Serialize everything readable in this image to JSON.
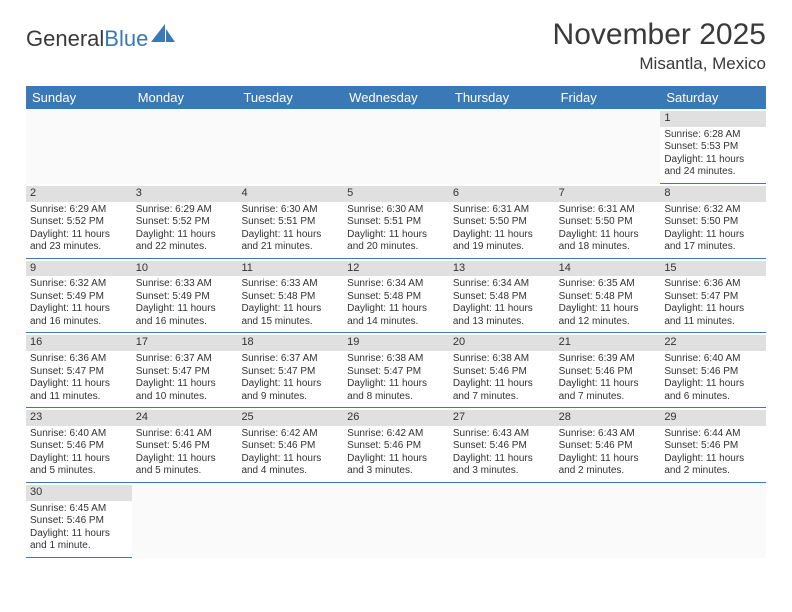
{
  "logo": {
    "part1": "General",
    "part2": "Blue"
  },
  "title": "November 2025",
  "location": "Misantla, Mexico",
  "weekdays": [
    "Sunday",
    "Monday",
    "Tuesday",
    "Wednesday",
    "Thursday",
    "Friday",
    "Saturday"
  ],
  "colors": {
    "header_bar": "#3a78b6",
    "daynum_band": "#e0e0e0",
    "cell_border": "#3a78b6",
    "text": "#333333",
    "logo_blue": "#3a78b6"
  },
  "firstDayOffset": 6,
  "days": [
    {
      "n": 1,
      "sunrise": "6:28 AM",
      "sunset": "5:53 PM",
      "daylight": "11 hours and 24 minutes."
    },
    {
      "n": 2,
      "sunrise": "6:29 AM",
      "sunset": "5:52 PM",
      "daylight": "11 hours and 23 minutes."
    },
    {
      "n": 3,
      "sunrise": "6:29 AM",
      "sunset": "5:52 PM",
      "daylight": "11 hours and 22 minutes."
    },
    {
      "n": 4,
      "sunrise": "6:30 AM",
      "sunset": "5:51 PM",
      "daylight": "11 hours and 21 minutes."
    },
    {
      "n": 5,
      "sunrise": "6:30 AM",
      "sunset": "5:51 PM",
      "daylight": "11 hours and 20 minutes."
    },
    {
      "n": 6,
      "sunrise": "6:31 AM",
      "sunset": "5:50 PM",
      "daylight": "11 hours and 19 minutes."
    },
    {
      "n": 7,
      "sunrise": "6:31 AM",
      "sunset": "5:50 PM",
      "daylight": "11 hours and 18 minutes."
    },
    {
      "n": 8,
      "sunrise": "6:32 AM",
      "sunset": "5:50 PM",
      "daylight": "11 hours and 17 minutes."
    },
    {
      "n": 9,
      "sunrise": "6:32 AM",
      "sunset": "5:49 PM",
      "daylight": "11 hours and 16 minutes."
    },
    {
      "n": 10,
      "sunrise": "6:33 AM",
      "sunset": "5:49 PM",
      "daylight": "11 hours and 16 minutes."
    },
    {
      "n": 11,
      "sunrise": "6:33 AM",
      "sunset": "5:48 PM",
      "daylight": "11 hours and 15 minutes."
    },
    {
      "n": 12,
      "sunrise": "6:34 AM",
      "sunset": "5:48 PM",
      "daylight": "11 hours and 14 minutes."
    },
    {
      "n": 13,
      "sunrise": "6:34 AM",
      "sunset": "5:48 PM",
      "daylight": "11 hours and 13 minutes."
    },
    {
      "n": 14,
      "sunrise": "6:35 AM",
      "sunset": "5:48 PM",
      "daylight": "11 hours and 12 minutes."
    },
    {
      "n": 15,
      "sunrise": "6:36 AM",
      "sunset": "5:47 PM",
      "daylight": "11 hours and 11 minutes."
    },
    {
      "n": 16,
      "sunrise": "6:36 AM",
      "sunset": "5:47 PM",
      "daylight": "11 hours and 11 minutes."
    },
    {
      "n": 17,
      "sunrise": "6:37 AM",
      "sunset": "5:47 PM",
      "daylight": "11 hours and 10 minutes."
    },
    {
      "n": 18,
      "sunrise": "6:37 AM",
      "sunset": "5:47 PM",
      "daylight": "11 hours and 9 minutes."
    },
    {
      "n": 19,
      "sunrise": "6:38 AM",
      "sunset": "5:47 PM",
      "daylight": "11 hours and 8 minutes."
    },
    {
      "n": 20,
      "sunrise": "6:38 AM",
      "sunset": "5:46 PM",
      "daylight": "11 hours and 7 minutes."
    },
    {
      "n": 21,
      "sunrise": "6:39 AM",
      "sunset": "5:46 PM",
      "daylight": "11 hours and 7 minutes."
    },
    {
      "n": 22,
      "sunrise": "6:40 AM",
      "sunset": "5:46 PM",
      "daylight": "11 hours and 6 minutes."
    },
    {
      "n": 23,
      "sunrise": "6:40 AM",
      "sunset": "5:46 PM",
      "daylight": "11 hours and 5 minutes."
    },
    {
      "n": 24,
      "sunrise": "6:41 AM",
      "sunset": "5:46 PM",
      "daylight": "11 hours and 5 minutes."
    },
    {
      "n": 25,
      "sunrise": "6:42 AM",
      "sunset": "5:46 PM",
      "daylight": "11 hours and 4 minutes."
    },
    {
      "n": 26,
      "sunrise": "6:42 AM",
      "sunset": "5:46 PM",
      "daylight": "11 hours and 3 minutes."
    },
    {
      "n": 27,
      "sunrise": "6:43 AM",
      "sunset": "5:46 PM",
      "daylight": "11 hours and 3 minutes."
    },
    {
      "n": 28,
      "sunrise": "6:43 AM",
      "sunset": "5:46 PM",
      "daylight": "11 hours and 2 minutes."
    },
    {
      "n": 29,
      "sunrise": "6:44 AM",
      "sunset": "5:46 PM",
      "daylight": "11 hours and 2 minutes."
    },
    {
      "n": 30,
      "sunrise": "6:45 AM",
      "sunset": "5:46 PM",
      "daylight": "11 hours and 1 minute."
    }
  ],
  "labels": {
    "sunrise": "Sunrise: ",
    "sunset": "Sunset: ",
    "daylight": "Daylight: "
  }
}
